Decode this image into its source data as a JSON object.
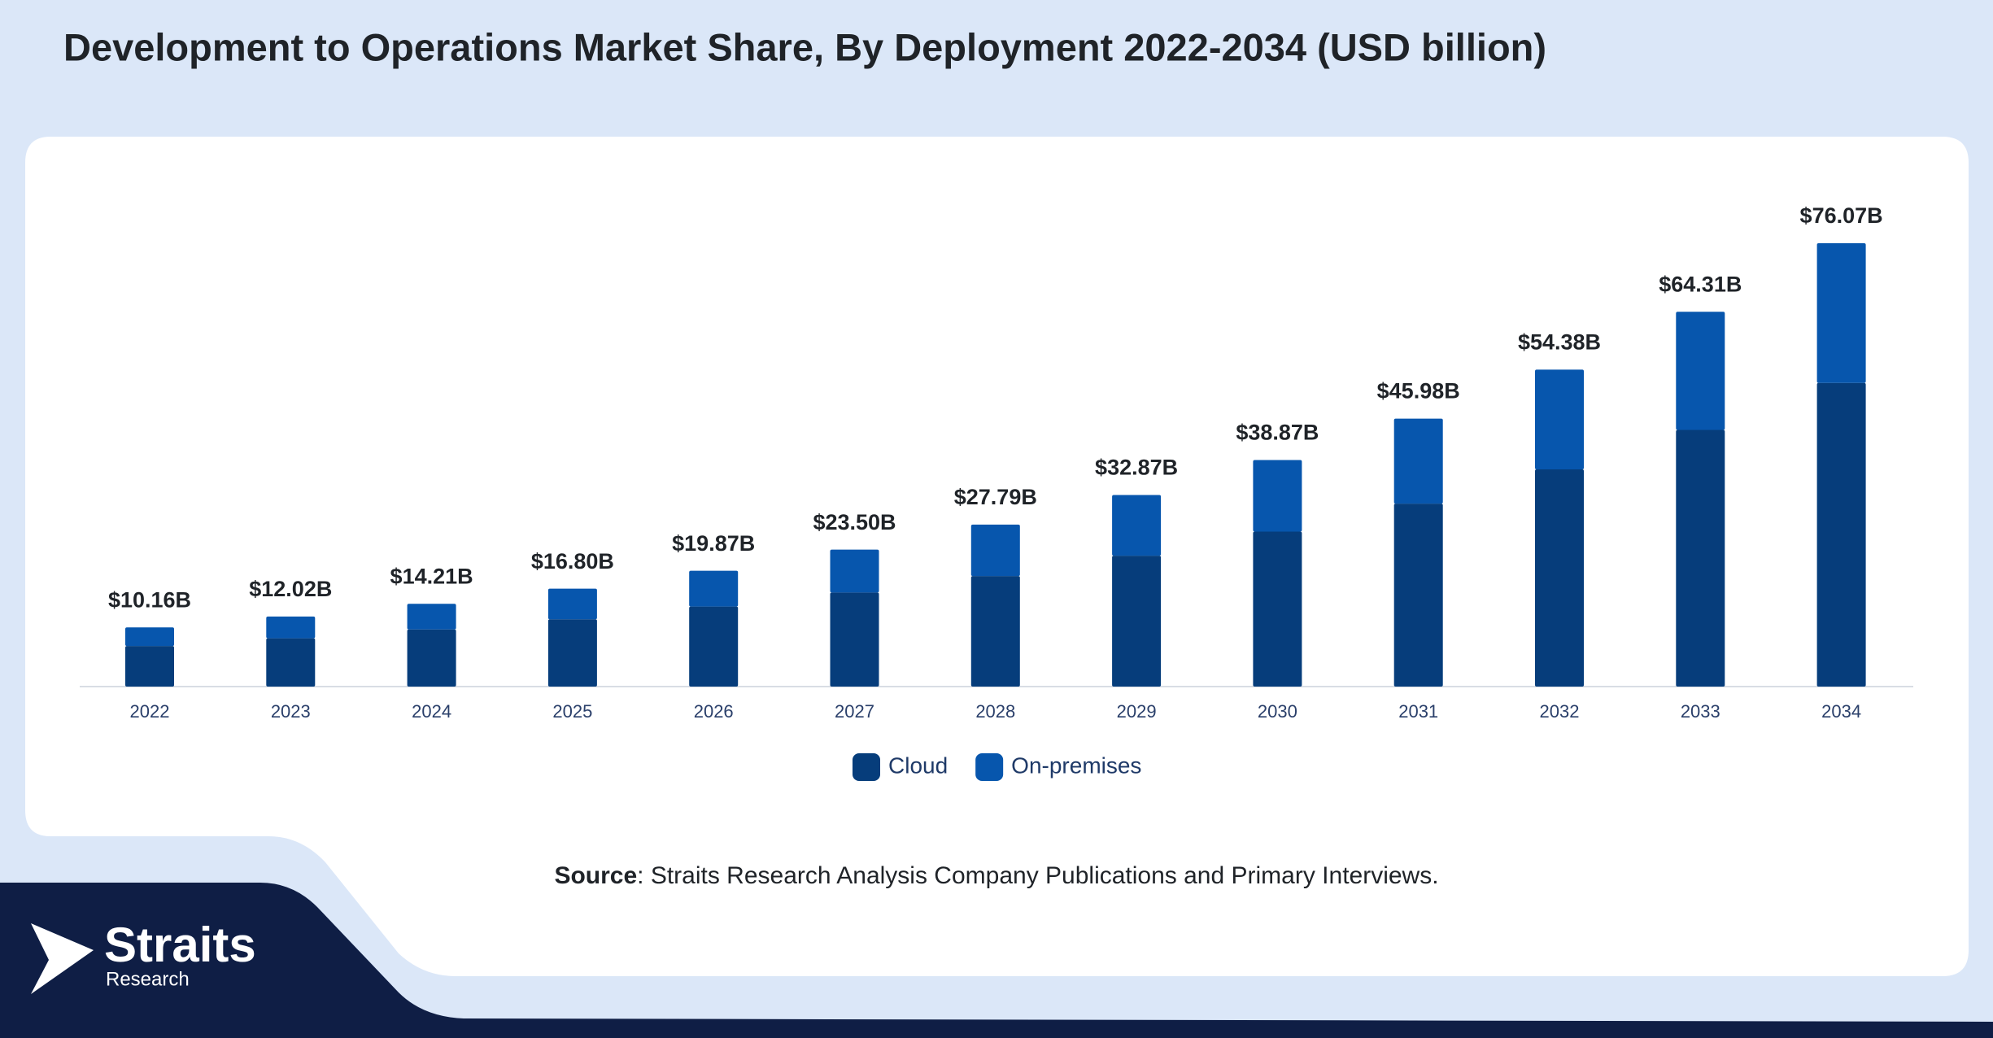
{
  "chart_data": {
    "type": "stacked_bar",
    "title": "Development to Operations Market Share, By Deployment 2022-2034 (USD billion)",
    "categories": [
      "2022",
      "2023",
      "2024",
      "2025",
      "2026",
      "2027",
      "2028",
      "2029",
      "2030",
      "2031",
      "2032",
      "2033",
      "2034"
    ],
    "series": [
      {
        "name": "Cloud",
        "color": "#063d7b",
        "values": [
          6.97,
          8.28,
          9.81,
          11.55,
          13.73,
          16.13,
          18.96,
          22.45,
          26.59,
          31.39,
          37.27,
          44.03,
          52.1
        ]
      },
      {
        "name": "On-premises",
        "color": "#0756ad",
        "values": [
          3.19,
          3.74,
          4.4,
          5.25,
          6.14,
          7.37,
          8.83,
          10.42,
          12.28,
          14.59,
          17.11,
          20.28,
          23.97
        ]
      }
    ],
    "totals": {
      "values": [
        10.16,
        12.02,
        14.21,
        16.8,
        19.87,
        23.5,
        27.79,
        32.87,
        38.87,
        45.98,
        54.38,
        64.31,
        76.07
      ],
      "value_labels": [
        "$10.16B",
        "$12.02B",
        "$14.21B",
        "$16.80B",
        "$19.87B",
        "$23.50B",
        "$27.79B",
        "$32.87B",
        "$38.87B",
        "$45.98B",
        "$54.38B",
        "$64.31B",
        "$76.07B"
      ]
    },
    "legend": "bottom"
  },
  "source": {
    "label": "Source",
    "text": ": Straits Research Analysis Company Publications and Primary Interviews."
  },
  "logo": {
    "name": "Straits",
    "sub": "Research"
  }
}
